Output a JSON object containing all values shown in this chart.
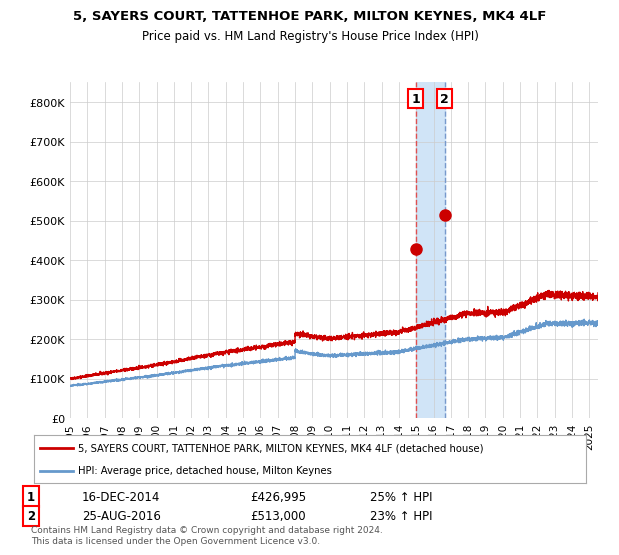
{
  "title_line1": "5, SAYERS COURT, TATTENHOE PARK, MILTON KEYNES, MK4 4LF",
  "title_line2": "Price paid vs. HM Land Registry's House Price Index (HPI)",
  "ylabel": "",
  "xlim_start": 1995.0,
  "xlim_end": 2025.5,
  "ylim": [
    0,
    850000
  ],
  "yticks": [
    0,
    100000,
    200000,
    300000,
    400000,
    500000,
    600000,
    700000,
    800000
  ],
  "ytick_labels": [
    "£0",
    "£100K",
    "£200K",
    "£300K",
    "£400K",
    "£500K",
    "£600K",
    "£700K",
    "£800K"
  ],
  "xtick_years": [
    1995,
    1996,
    1997,
    1998,
    1999,
    2000,
    2001,
    2002,
    2003,
    2004,
    2005,
    2006,
    2007,
    2008,
    2009,
    2010,
    2011,
    2012,
    2013,
    2014,
    2015,
    2016,
    2017,
    2018,
    2019,
    2020,
    2021,
    2022,
    2023,
    2024,
    2025
  ],
  "purchase1_x": 2014.96,
  "purchase1_y": 426995,
  "purchase1_label": "1",
  "purchase2_x": 2016.65,
  "purchase2_y": 513000,
  "purchase2_label": "2",
  "vline1_x": 2014.96,
  "vline2_x": 2016.65,
  "highlight_color": "#d0e4f7",
  "vline1_color": "#e05050",
  "vline2_color": "#7799cc",
  "red_line_color": "#cc0000",
  "blue_line_color": "#6699cc",
  "marker_color": "#cc0000",
  "legend_red_label": "5, SAYERS COURT, TATTENHOE PARK, MILTON KEYNES, MK4 4LF (detached house)",
  "legend_blue_label": "HPI: Average price, detached house, Milton Keynes",
  "annotation1_date": "16-DEC-2014",
  "annotation1_price": "£426,995",
  "annotation1_hpi": "25% ↑ HPI",
  "annotation2_date": "25-AUG-2016",
  "annotation2_price": "£513,000",
  "annotation2_hpi": "23% ↑ HPI",
  "footer": "Contains HM Land Registry data © Crown copyright and database right 2024.\nThis data is licensed under the Open Government Licence v3.0.",
  "background_color": "#ffffff",
  "grid_color": "#cccccc"
}
